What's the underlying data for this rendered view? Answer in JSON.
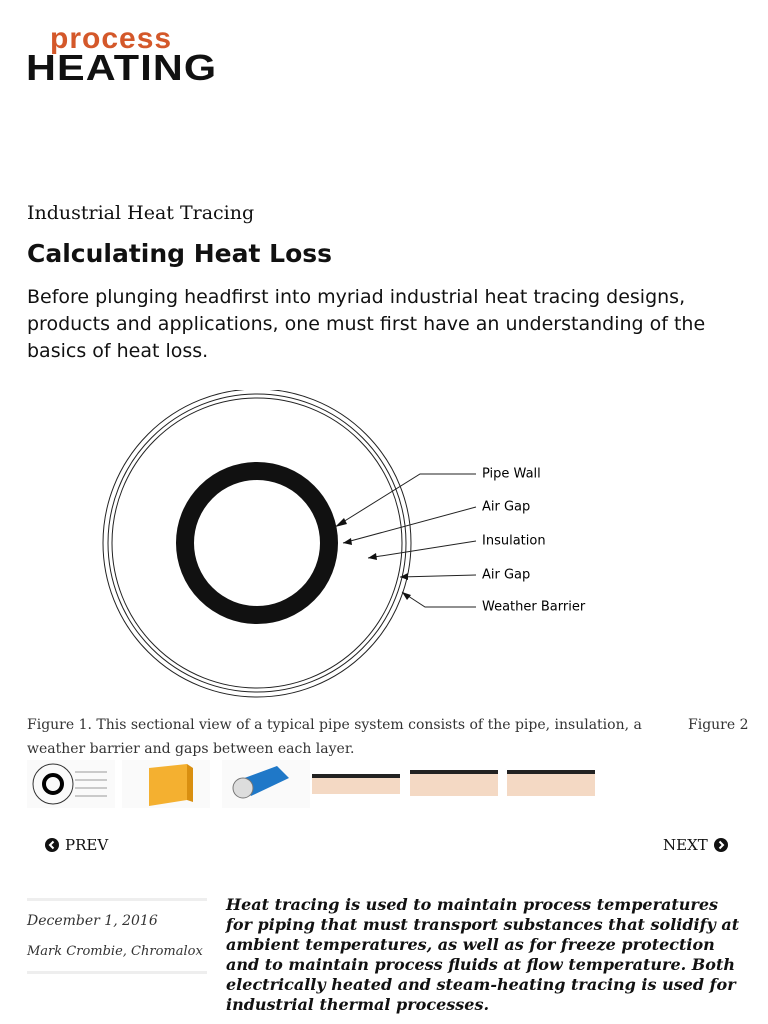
{
  "header": {
    "logo_top": "process",
    "logo_bottom": "HEATING"
  },
  "article": {
    "category": "Industrial Heat Tracing",
    "title": "Calculating Heat Loss",
    "deck": "Before plunging headfirst into myriad industrial heat tracing designs, products and applications, one must first have an understanding of the basics of heat loss.",
    "figure": {
      "labels": [
        "Pipe Wall",
        "Air Gap",
        "Insulation",
        "Air Gap",
        "Weather Barrier"
      ],
      "caption": "Figure 1. This sectional view of a typical pipe system consists of the pipe, insulation, a weather barrier and gaps between each layer.",
      "next_caption": "Figure 2"
    },
    "nav": {
      "prev": "PREV",
      "next": "NEXT"
    },
    "date": "December 1, 2016",
    "author": "Mark Crombie, Chromalox",
    "lead": "Heat tracing is used to maintain process temperatures for piping that must transport substances that solidify at ambient temperatures, as well as for freeze protection and to maintain process fluids at flow temperature. Both electrically heated and steam-heating tracing is used for industrial thermal processes."
  }
}
